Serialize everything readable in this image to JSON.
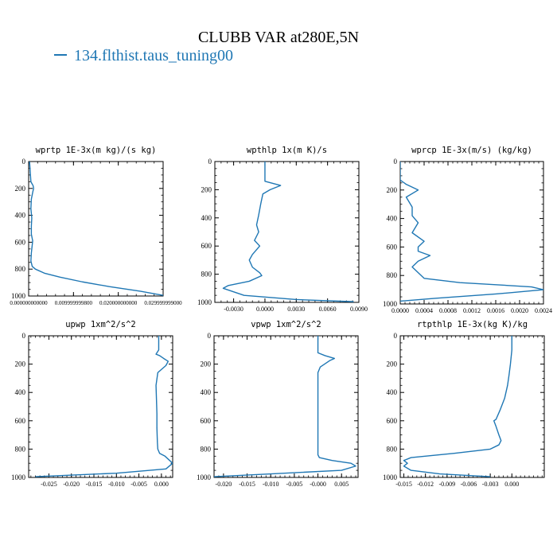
{
  "figure": {
    "title": "CLUBB VAR at280E,5N",
    "legend_label": "134.flthist.taus_tuning00",
    "line_color": "#1f77b4"
  },
  "chart_data": [
    {
      "type": "line",
      "title": "wprtp  1E-3x(m kg)/(s kg)",
      "xlim": [
        0,
        0.03
      ],
      "ylim": [
        1000,
        0
      ],
      "xticks": [
        0.0,
        0.01,
        0.02,
        0.03
      ],
      "xtick_labels": [
        "0.000000000000",
        "0.009999999800",
        "0.020000000000",
        "0.029999999000"
      ],
      "yticks": [
        0,
        200,
        400,
        600,
        800,
        1000
      ],
      "series": [
        {
          "x": [
            0.0002,
            0.0003,
            0.0005,
            0.001,
            0.0011,
            0.0009,
            0.0006,
            0.0005,
            0.0007,
            0.0006,
            0.0006,
            0.0009,
            0.0008,
            0.0006,
            0.0005,
            0.0008,
            0.0015,
            0.0035,
            0.007,
            0.012,
            0.018,
            0.025,
            0.03
          ],
          "y": [
            0,
            50,
            150,
            180,
            200,
            230,
            280,
            350,
            420,
            480,
            540,
            590,
            620,
            680,
            740,
            780,
            800,
            830,
            860,
            895,
            930,
            965,
            995
          ]
        }
      ]
    },
    {
      "type": "line",
      "title": "wpthlp  1x(m K)/s",
      "xlim": [
        -0.0048,
        0.009
      ],
      "ylim": [
        1000,
        0
      ],
      "xticks": [
        -0.003,
        0.0,
        0.003,
        0.006,
        0.009
      ],
      "xtick_labels": [
        "-0.0030",
        "0.0000",
        "0.0030",
        "0.0060",
        "0.0090"
      ],
      "yticks": [
        0,
        200,
        400,
        600,
        800,
        1000
      ],
      "series": [
        {
          "x": [
            0.0,
            0.0,
            0.0,
            0.0005,
            0.0015,
            0.0005,
            -0.0002,
            -0.0004,
            -0.0006,
            -0.0008,
            -0.0006,
            -0.001,
            -0.0005,
            -0.0012,
            -0.0015,
            -0.0012,
            -0.0005,
            -0.0003,
            -0.0015,
            -0.0035,
            -0.004,
            -0.002,
            0.003,
            0.0085
          ],
          "y": [
            0,
            80,
            140,
            150,
            170,
            200,
            230,
            300,
            380,
            450,
            500,
            560,
            600,
            660,
            700,
            750,
            790,
            810,
            850,
            880,
            900,
            950,
            980,
            995
          ]
        }
      ]
    },
    {
      "type": "line",
      "title": "wprcp  1E-3x(m/s) (kg/kg)",
      "xlim": [
        0,
        0.0024
      ],
      "ylim": [
        1000,
        0
      ],
      "xticks": [
        0.0,
        0.0004,
        0.0008,
        0.0012,
        0.0016,
        0.002,
        0.0024
      ],
      "xtick_labels": [
        "0.0000",
        "0.0004",
        "0.0008",
        "0.0012",
        "0.0016",
        "0.0020",
        "0.0024"
      ],
      "yticks": [
        0,
        200,
        400,
        600,
        800,
        1000
      ],
      "series": [
        {
          "x": [
            0.0,
            0.0,
            0.0001,
            0.0003,
            0.0001,
            0.0002,
            0.0002,
            0.0003,
            0.0002,
            0.0004,
            0.0003,
            0.0003,
            0.0005,
            0.0003,
            0.0002,
            0.0003,
            0.0004,
            0.001,
            0.0022,
            0.0024,
            0.0016,
            0.0006,
            0.0
          ],
          "y": [
            0,
            130,
            160,
            200,
            250,
            320,
            380,
            430,
            500,
            560,
            600,
            630,
            660,
            700,
            740,
            780,
            820,
            850,
            880,
            900,
            930,
            960,
            980
          ]
        }
      ]
    },
    {
      "type": "line",
      "title": "upwp  1xm^2/s^2",
      "xlim": [
        -0.0295,
        0.0025
      ],
      "ylim": [
        1000,
        0
      ],
      "xticks": [
        -0.025,
        -0.02,
        -0.015,
        -0.01,
        -0.005,
        0.0
      ],
      "xtick_labels": [
        "-0.025",
        "-0.020",
        "-0.015",
        "-0.010",
        "-0.005",
        "0.000"
      ],
      "yticks": [
        0,
        200,
        400,
        600,
        800,
        1000
      ],
      "series": [
        {
          "x": [
            -0.0006,
            -0.0006,
            -0.0012,
            -0.0004,
            0.0005,
            0.0015,
            0.001,
            -0.0008,
            -0.0012,
            -0.0011,
            -0.001,
            -0.001,
            -0.0009,
            -0.0008,
            -0.0004,
            0.0008,
            0.0025,
            0.001,
            -0.01,
            -0.028
          ],
          "y": [
            0,
            100,
            130,
            140,
            160,
            180,
            210,
            260,
            350,
            450,
            550,
            650,
            750,
            800,
            830,
            850,
            900,
            940,
            970,
            995
          ]
        }
      ]
    },
    {
      "type": "line",
      "title": "vpwp  1xm^2/s^2",
      "xlim": [
        -0.022,
        0.0085
      ],
      "ylim": [
        1000,
        0
      ],
      "xticks": [
        -0.02,
        -0.015,
        -0.01,
        -0.005,
        0.0,
        0.005
      ],
      "xtick_labels": [
        "-0.020",
        "-0.015",
        "-0.010",
        "-0.005",
        "-0.000",
        "0.005"
      ],
      "yticks": [
        0,
        200,
        400,
        600,
        800,
        1000
      ],
      "series": [
        {
          "x": [
            0.0,
            0.0,
            0.0015,
            0.0035,
            0.0025,
            0.0005,
            0.0,
            0.0,
            0.0,
            0.0,
            0.0,
            0.0,
            0.0,
            0.0,
            0.0,
            0.0003,
            0.003,
            0.007,
            0.008,
            0.005,
            -0.01,
            -0.022
          ],
          "y": [
            0,
            120,
            140,
            160,
            175,
            220,
            260,
            300,
            400,
            500,
            600,
            700,
            780,
            820,
            840,
            860,
            880,
            900,
            920,
            950,
            975,
            995
          ]
        }
      ]
    },
    {
      "type": "line",
      "title": "rtpthlp  1E-3x(kg K)/kg",
      "xlim": [
        -0.0155,
        0.0045
      ],
      "ylim": [
        1000,
        0
      ],
      "xticks": [
        -0.015,
        -0.012,
        -0.009,
        -0.006,
        -0.003,
        0.0
      ],
      "xtick_labels": [
        "-0.015",
        "-0.012",
        "-0.009",
        "-0.006",
        "-0.003",
        "0.000"
      ],
      "yticks": [
        0,
        200,
        400,
        600,
        800,
        1000
      ],
      "series": [
        {
          "x": [
            0.0,
            0.0,
            -0.0002,
            -0.0004,
            -0.0006,
            -0.001,
            -0.0016,
            -0.0022,
            -0.0025,
            -0.0022,
            -0.0018,
            -0.0015,
            -0.0018,
            -0.003,
            -0.008,
            -0.014,
            -0.015,
            -0.0145,
            -0.015,
            -0.014,
            -0.01,
            -0.003
          ],
          "y": [
            0,
            100,
            200,
            280,
            350,
            440,
            520,
            590,
            600,
            640,
            700,
            740,
            770,
            800,
            830,
            860,
            880,
            900,
            920,
            950,
            975,
            995
          ]
        }
      ]
    }
  ]
}
